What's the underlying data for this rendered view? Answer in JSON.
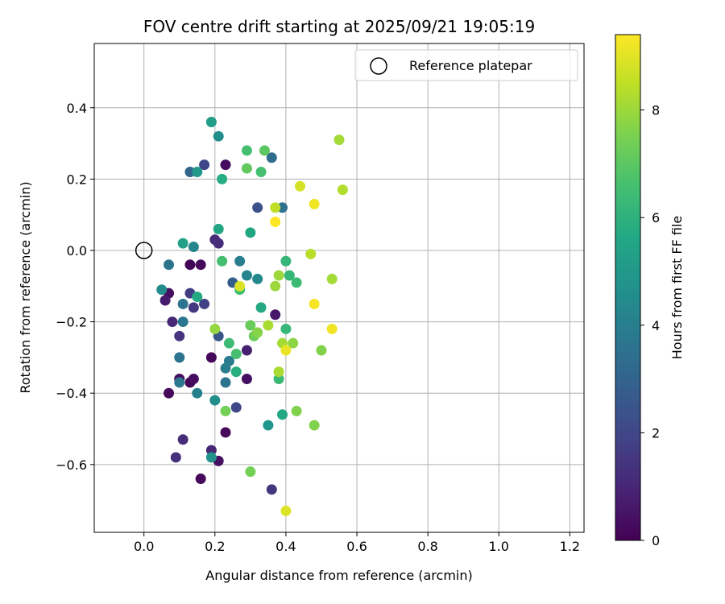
{
  "chart_data": {
    "type": "scatter",
    "title": "FOV centre drift starting at 2025/09/21 19:05:19",
    "xlabel": "Angular distance from reference (arcmin)",
    "ylabel": "Rotation from reference (arcmin)",
    "xlim": [
      -0.14,
      1.24
    ],
    "ylim": [
      -0.79,
      0.58
    ],
    "xticks": [
      0.0,
      0.2,
      0.4,
      0.6,
      0.8,
      1.0,
      1.2
    ],
    "xtick_labels": [
      "0.0",
      "0.2",
      "0.4",
      "0.6",
      "0.8",
      "1.0",
      "1.2"
    ],
    "yticks": [
      0.4,
      0.2,
      0.0,
      -0.2,
      -0.4,
      -0.6
    ],
    "ytick_labels": [
      "0.4",
      "0.2",
      "0.0",
      "−0.2",
      "−0.4",
      "−0.6"
    ],
    "grid": true,
    "legend": {
      "placement": "top-right",
      "entries": [
        "Reference platepar"
      ]
    },
    "reference_point": {
      "x": 0.0,
      "y": 0.0
    },
    "colorbar": {
      "label": "Hours from first FF file",
      "colormap": "viridis",
      "range": [
        0,
        9.4
      ],
      "ticks": [
        0,
        2,
        4,
        6,
        8
      ],
      "tick_labels": [
        "0",
        "2",
        "4",
        "6",
        "8"
      ]
    },
    "points": [
      {
        "x": 0.16,
        "y": -0.64,
        "h": 0.2
      },
      {
        "x": 0.07,
        "y": -0.4,
        "h": 0.2
      },
      {
        "x": 0.13,
        "y": -0.37,
        "h": 0.1
      },
      {
        "x": 0.1,
        "y": -0.36,
        "h": 0.3
      },
      {
        "x": 0.14,
        "y": -0.36,
        "h": 0.3
      },
      {
        "x": 0.07,
        "y": -0.12,
        "h": 0.4
      },
      {
        "x": 0.06,
        "y": -0.14,
        "h": 0.7
      },
      {
        "x": 0.13,
        "y": -0.04,
        "h": 0.1
      },
      {
        "x": 0.16,
        "y": -0.04,
        "h": 0.2
      },
      {
        "x": 0.19,
        "y": -0.3,
        "h": 0.2
      },
      {
        "x": 0.23,
        "y": -0.51,
        "h": 0.2
      },
      {
        "x": 0.21,
        "y": -0.59,
        "h": 0.4
      },
      {
        "x": 0.19,
        "y": -0.56,
        "h": 1.0
      },
      {
        "x": 0.29,
        "y": -0.36,
        "h": 0.4
      },
      {
        "x": 0.29,
        "y": -0.28,
        "h": 0.8
      },
      {
        "x": 0.23,
        "y": 0.24,
        "h": 0.3
      },
      {
        "x": 0.37,
        "y": -0.18,
        "h": 0.6
      },
      {
        "x": 0.09,
        "y": -0.58,
        "h": 1.3
      },
      {
        "x": 0.11,
        "y": -0.53,
        "h": 1.2
      },
      {
        "x": 0.08,
        "y": -0.2,
        "h": 1.0
      },
      {
        "x": 0.1,
        "y": -0.24,
        "h": 1.4
      },
      {
        "x": 0.13,
        "y": -0.12,
        "h": 1.7
      },
      {
        "x": 0.14,
        "y": -0.16,
        "h": 1.5
      },
      {
        "x": 0.17,
        "y": -0.15,
        "h": 1.8
      },
      {
        "x": 0.2,
        "y": 0.03,
        "h": 1.2
      },
      {
        "x": 0.21,
        "y": 0.02,
        "h": 1.2
      },
      {
        "x": 0.17,
        "y": 0.24,
        "h": 2.0
      },
      {
        "x": 0.36,
        "y": -0.67,
        "h": 1.5
      },
      {
        "x": 0.26,
        "y": -0.44,
        "h": 2.0
      },
      {
        "x": 0.21,
        "y": -0.24,
        "h": 2.5
      },
      {
        "x": 0.25,
        "y": -0.09,
        "h": 2.8
      },
      {
        "x": 0.32,
        "y": 0.12,
        "h": 2.3
      },
      {
        "x": 0.13,
        "y": 0.22,
        "h": 3.1
      },
      {
        "x": 0.36,
        "y": 0.26,
        "h": 3.3
      },
      {
        "x": 0.39,
        "y": 0.12,
        "h": 3.5
      },
      {
        "x": 0.07,
        "y": -0.04,
        "h": 3.6
      },
      {
        "x": 0.11,
        "y": -0.15,
        "h": 3.6
      },
      {
        "x": 0.11,
        "y": -0.2,
        "h": 3.7
      },
      {
        "x": 0.1,
        "y": -0.3,
        "h": 3.6
      },
      {
        "x": 0.1,
        "y": -0.37,
        "h": 3.8
      },
      {
        "x": 0.15,
        "y": -0.4,
        "h": 4.1
      },
      {
        "x": 0.23,
        "y": -0.37,
        "h": 3.6
      },
      {
        "x": 0.24,
        "y": -0.31,
        "h": 3.9
      },
      {
        "x": 0.23,
        "y": -0.33,
        "h": 4.0
      },
      {
        "x": 0.14,
        "y": 0.01,
        "h": 4.2
      },
      {
        "x": 0.27,
        "y": -0.03,
        "h": 4.0
      },
      {
        "x": 0.29,
        "y": -0.07,
        "h": 4.2
      },
      {
        "x": 0.32,
        "y": -0.08,
        "h": 4.4
      },
      {
        "x": 0.05,
        "y": -0.11,
        "h": 4.5
      },
      {
        "x": 0.2,
        "y": -0.42,
        "h": 4.6
      },
      {
        "x": 0.19,
        "y": -0.58,
        "h": 4.8
      },
      {
        "x": 0.35,
        "y": -0.49,
        "h": 4.9
      },
      {
        "x": 0.21,
        "y": 0.32,
        "h": 4.6
      },
      {
        "x": 0.15,
        "y": 0.22,
        "h": 5.0
      },
      {
        "x": 0.19,
        "y": 0.36,
        "h": 5.2
      },
      {
        "x": 0.11,
        "y": 0.02,
        "h": 5.3
      },
      {
        "x": 0.21,
        "y": 0.06,
        "h": 5.5
      },
      {
        "x": 0.3,
        "y": 0.05,
        "h": 5.6
      },
      {
        "x": 0.15,
        "y": -0.13,
        "h": 5.7
      },
      {
        "x": 0.33,
        "y": -0.16,
        "h": 5.7
      },
      {
        "x": 0.26,
        "y": -0.34,
        "h": 5.9
      },
      {
        "x": 0.39,
        "y": -0.46,
        "h": 5.6
      },
      {
        "x": 0.22,
        "y": 0.2,
        "h": 5.8
      },
      {
        "x": 0.4,
        "y": -0.03,
        "h": 6.2
      },
      {
        "x": 0.41,
        "y": -0.07,
        "h": 6.2
      },
      {
        "x": 0.43,
        "y": -0.09,
        "h": 6.4
      },
      {
        "x": 0.4,
        "y": -0.22,
        "h": 6.2
      },
      {
        "x": 0.38,
        "y": -0.36,
        "h": 6.3
      },
      {
        "x": 0.24,
        "y": -0.26,
        "h": 6.4
      },
      {
        "x": 0.27,
        "y": -0.11,
        "h": 6.5
      },
      {
        "x": 0.26,
        "y": -0.29,
        "h": 6.6
      },
      {
        "x": 0.22,
        "y": -0.03,
        "h": 6.6
      },
      {
        "x": 0.29,
        "y": 0.28,
        "h": 6.6
      },
      {
        "x": 0.33,
        "y": 0.22,
        "h": 6.6
      },
      {
        "x": 0.34,
        "y": 0.28,
        "h": 7.0
      },
      {
        "x": 0.29,
        "y": 0.23,
        "h": 7.1
      },
      {
        "x": 0.3,
        "y": -0.21,
        "h": 7.2
      },
      {
        "x": 0.31,
        "y": -0.24,
        "h": 7.3
      },
      {
        "x": 0.23,
        "y": -0.45,
        "h": 7.4
      },
      {
        "x": 0.3,
        "y": -0.62,
        "h": 7.4
      },
      {
        "x": 0.43,
        "y": -0.45,
        "h": 7.6
      },
      {
        "x": 0.48,
        "y": -0.49,
        "h": 7.6
      },
      {
        "x": 0.5,
        "y": -0.28,
        "h": 7.6
      },
      {
        "x": 0.42,
        "y": -0.26,
        "h": 7.8
      },
      {
        "x": 0.32,
        "y": -0.23,
        "h": 7.7
      },
      {
        "x": 0.2,
        "y": -0.22,
        "h": 7.9
      },
      {
        "x": 0.37,
        "y": -0.1,
        "h": 8.0
      },
      {
        "x": 0.38,
        "y": -0.07,
        "h": 8.0
      },
      {
        "x": 0.35,
        "y": -0.21,
        "h": 8.2
      },
      {
        "x": 0.39,
        "y": -0.26,
        "h": 8.1
      },
      {
        "x": 0.38,
        "y": -0.34,
        "h": 8.2
      },
      {
        "x": 0.53,
        "y": -0.08,
        "h": 8.1
      },
      {
        "x": 0.47,
        "y": -0.01,
        "h": 8.4
      },
      {
        "x": 0.55,
        "y": 0.31,
        "h": 8.1
      },
      {
        "x": 0.56,
        "y": 0.17,
        "h": 8.3
      },
      {
        "x": 0.44,
        "y": 0.18,
        "h": 8.8
      },
      {
        "x": 0.37,
        "y": 0.12,
        "h": 8.5
      },
      {
        "x": 0.27,
        "y": -0.1,
        "h": 8.9
      },
      {
        "x": 0.4,
        "y": -0.73,
        "h": 8.9
      },
      {
        "x": 0.4,
        "y": -0.28,
        "h": 9.1
      },
      {
        "x": 0.48,
        "y": -0.15,
        "h": 9.3
      },
      {
        "x": 0.53,
        "y": -0.22,
        "h": 9.2
      },
      {
        "x": 0.48,
        "y": 0.13,
        "h": 9.2
      },
      {
        "x": 0.37,
        "y": 0.08,
        "h": 9.4
      }
    ]
  }
}
